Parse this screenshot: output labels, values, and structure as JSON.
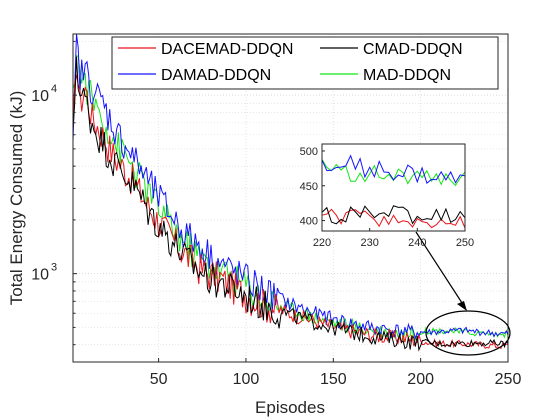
{
  "chart_data": {
    "type": "line",
    "title": "",
    "xlabel": "Episodes",
    "ylabel": "Total Energy Consumed (kJ)",
    "xlim": [
      1,
      250
    ],
    "ylim": [
      320,
      22000
    ],
    "yscale": "log",
    "grid": true,
    "legend_position": "top",
    "x_ticks": [
      50,
      100,
      150,
      200,
      250
    ],
    "y_ticks": [
      {
        "base": "10",
        "exp": "3",
        "value": 1000
      },
      {
        "base": "10",
        "exp": "4",
        "value": 10000
      }
    ],
    "series": [
      {
        "name": "DACEMAD-DDQN",
        "color": "#e8141c",
        "x": [
          1,
          3,
          5,
          8,
          12,
          18,
          25,
          35,
          45,
          55,
          65,
          75,
          85,
          95,
          105,
          115,
          125,
          135,
          145,
          155,
          165,
          175,
          185,
          195,
          205,
          215,
          225,
          235,
          245,
          250
        ],
        "values": [
          6000,
          16000,
          9000,
          11000,
          7500,
          6000,
          4500,
          3400,
          2300,
          1700,
          1300,
          1050,
          950,
          820,
          720,
          650,
          600,
          560,
          520,
          490,
          470,
          450,
          440,
          430,
          410,
          405,
          405,
          400,
          395,
          395
        ]
      },
      {
        "name": "CMAD-DDQN",
        "color": "#000000",
        "x": [
          1,
          3,
          5,
          8,
          12,
          18,
          25,
          35,
          45,
          55,
          65,
          75,
          85,
          95,
          105,
          115,
          125,
          135,
          145,
          155,
          165,
          175,
          185,
          195,
          205,
          215,
          225,
          235,
          245,
          250
        ],
        "values": [
          5500,
          17000,
          10000,
          9500,
          7000,
          5500,
          4200,
          3200,
          2200,
          1650,
          1250,
          1000,
          900,
          800,
          710,
          640,
          590,
          550,
          515,
          485,
          460,
          440,
          430,
          415,
          410,
          405,
          408,
          410,
          405,
          405
        ]
      },
      {
        "name": "DAMAD-DDQN",
        "color": "#1414ff",
        "x": [
          1,
          3,
          5,
          8,
          12,
          18,
          25,
          35,
          45,
          55,
          65,
          75,
          85,
          95,
          105,
          115,
          125,
          135,
          145,
          155,
          165,
          175,
          185,
          195,
          205,
          215,
          225,
          235,
          245,
          250
        ],
        "values": [
          4600,
          20000,
          13000,
          14000,
          11000,
          9000,
          6500,
          4600,
          3200,
          2300,
          1700,
          1400,
          1150,
          1000,
          880,
          760,
          680,
          620,
          575,
          540,
          510,
          495,
          480,
          470,
          470,
          475,
          480,
          470,
          460,
          460
        ]
      },
      {
        "name": "MAD-DDQN",
        "color": "#14e614",
        "x": [
          1,
          3,
          5,
          8,
          12,
          18,
          25,
          35,
          45,
          55,
          65,
          75,
          85,
          95,
          105,
          115,
          125,
          135,
          145,
          155,
          165,
          175,
          185,
          195,
          205,
          215,
          225,
          235,
          245,
          250
        ],
        "values": [
          9000,
          20000,
          13000,
          12000,
          9500,
          7500,
          5500,
          4000,
          2800,
          2000,
          1500,
          1200,
          1050,
          930,
          800,
          700,
          640,
          590,
          550,
          520,
          495,
          480,
          470,
          465,
          480,
          480,
          470,
          465,
          455,
          460
        ]
      }
    ],
    "inset": {
      "xlim": [
        220,
        250
      ],
      "ylim": [
        385,
        510
      ],
      "x_ticks": [
        220,
        230,
        240,
        250
      ],
      "y_ticks": [
        400,
        450,
        500
      ]
    }
  }
}
